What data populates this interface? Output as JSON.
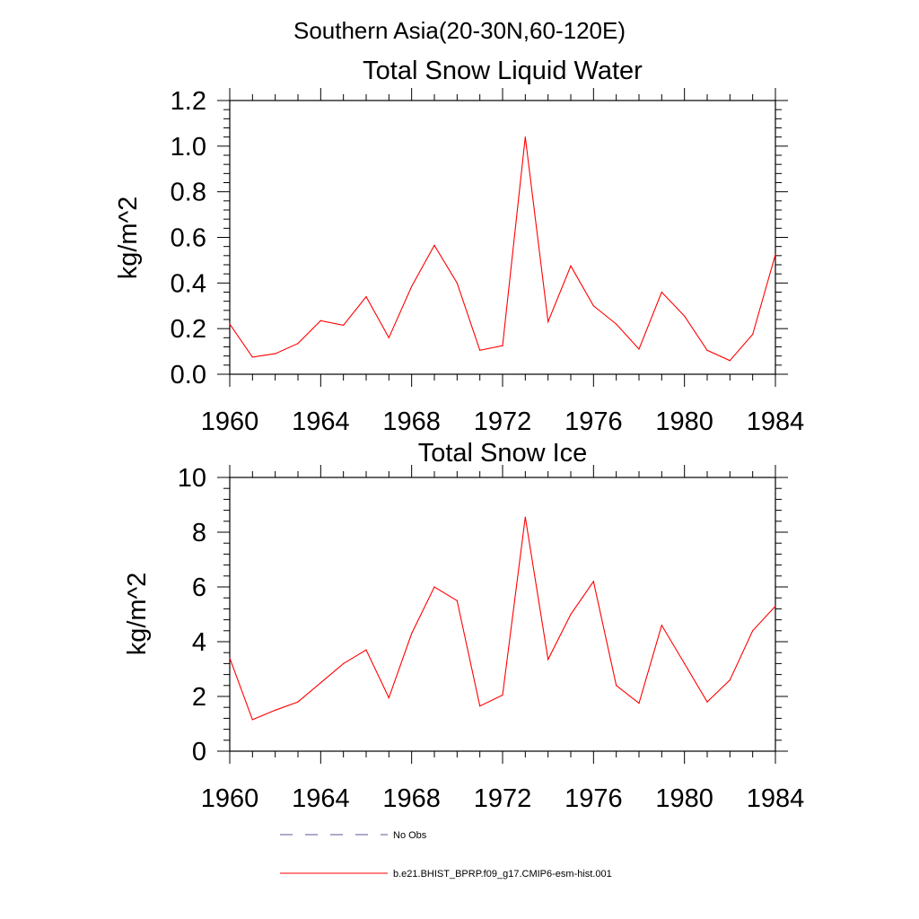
{
  "page_title": "Southern Asia(20-30N,60-120E)",
  "chart_data": [
    {
      "type": "line",
      "title": "Total Snow Liquid Water",
      "xlabel": "",
      "ylabel": "kg/m^2",
      "xlim": [
        1960,
        1984
      ],
      "ylim": [
        0,
        1.2
      ],
      "xticks": [
        "1960",
        "1964",
        "1968",
        "1972",
        "1976",
        "1980",
        "1984"
      ],
      "yticks": [
        "0.0",
        "0.2",
        "0.4",
        "0.6",
        "0.8",
        "1.0",
        "1.2"
      ],
      "grid": false,
      "x": [
        1960,
        1961,
        1962,
        1963,
        1964,
        1965,
        1966,
        1967,
        1968,
        1969,
        1970,
        1971,
        1972,
        1973,
        1974,
        1975,
        1976,
        1977,
        1978,
        1979,
        1980,
        1981,
        1982,
        1983,
        1984
      ],
      "series": [
        {
          "name": "b.e21.BHIST_BPRP.f09_g17.CMIP6-esm-hist.001",
          "color": "#ff0000",
          "values": [
            0.22,
            0.075,
            0.09,
            0.135,
            0.235,
            0.215,
            0.34,
            0.16,
            0.385,
            0.565,
            0.4,
            0.105,
            0.125,
            1.04,
            0.23,
            0.475,
            0.3,
            0.22,
            0.11,
            0.36,
            0.255,
            0.105,
            0.06,
            0.175,
            0.525
          ]
        }
      ]
    },
    {
      "type": "line",
      "title": "Total Snow Ice",
      "xlabel": "",
      "ylabel": "kg/m^2",
      "xlim": [
        1960,
        1984
      ],
      "ylim": [
        0,
        10
      ],
      "xticks": [
        "1960",
        "1964",
        "1968",
        "1972",
        "1976",
        "1980",
        "1984"
      ],
      "yticks": [
        "0",
        "2",
        "4",
        "6",
        "8",
        "10"
      ],
      "grid": false,
      "x": [
        1960,
        1961,
        1962,
        1963,
        1964,
        1965,
        1966,
        1967,
        1968,
        1969,
        1970,
        1971,
        1972,
        1973,
        1974,
        1975,
        1976,
        1977,
        1978,
        1979,
        1980,
        1981,
        1982,
        1983,
        1984
      ],
      "series": [
        {
          "name": "b.e21.BHIST_BPRP.f09_g17.CMIP6-esm-hist.001",
          "color": "#ff0000",
          "values": [
            3.4,
            1.15,
            1.5,
            1.8,
            2.5,
            3.2,
            3.7,
            1.95,
            4.3,
            6.0,
            5.5,
            1.65,
            2.05,
            8.55,
            3.35,
            5.0,
            6.2,
            2.4,
            1.75,
            4.6,
            3.2,
            1.8,
            2.6,
            4.4,
            5.3
          ]
        }
      ]
    }
  ],
  "legend": {
    "placement": "bottom",
    "items": [
      {
        "label": "No Obs",
        "style": "dashed",
        "color": "#5a5a9a"
      },
      {
        "label": "b.e21.BHIST_BPRP.f09_g17.CMIP6-esm-hist.001",
        "style": "solid",
        "color": "#ff0000"
      }
    ]
  }
}
